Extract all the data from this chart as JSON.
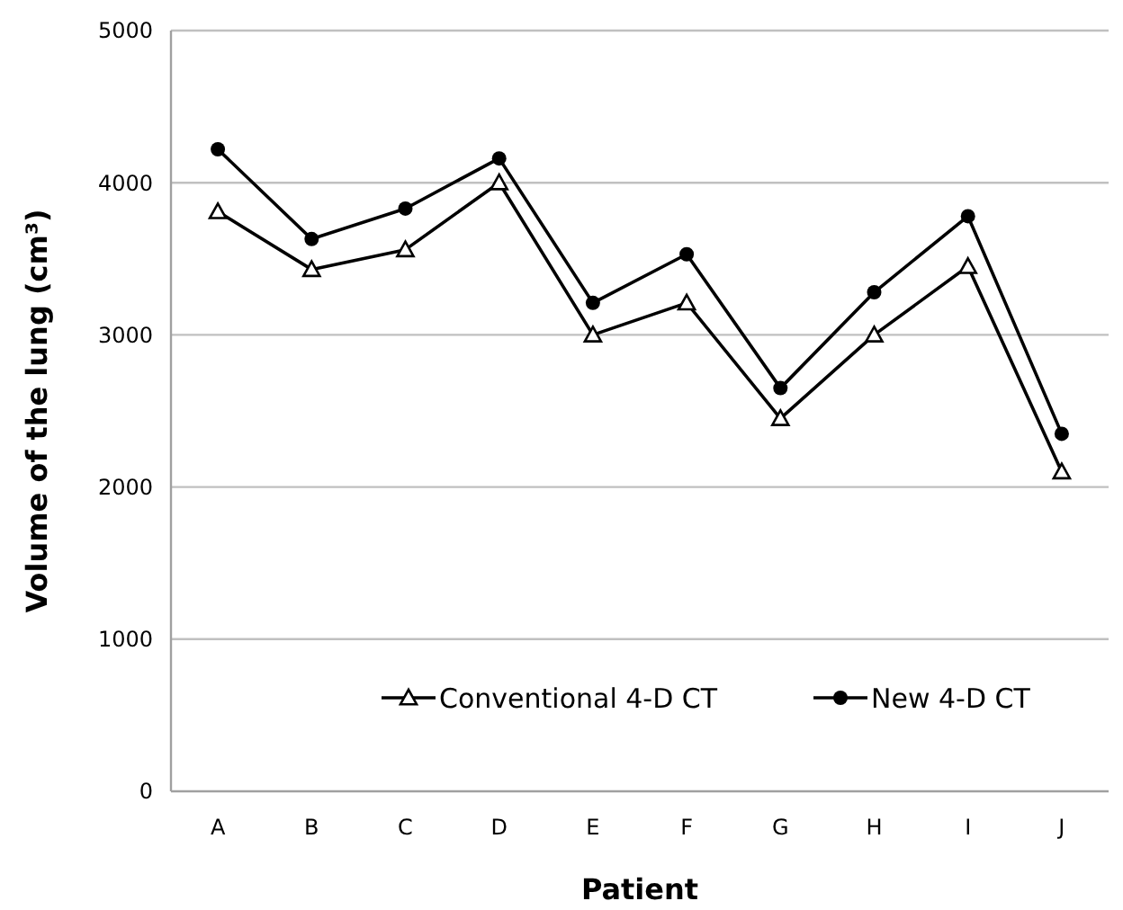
{
  "chart_data": {
    "type": "line",
    "xlabel": "Patient",
    "ylabel": "Volume of the lung (cm³)",
    "categories": [
      "A",
      "B",
      "C",
      "D",
      "E",
      "F",
      "G",
      "H",
      "I",
      "J"
    ],
    "series": [
      {
        "name": "Conventional 4-D CT",
        "color": "#000000",
        "marker": "triangle",
        "values": [
          3810,
          3430,
          3560,
          4000,
          3000,
          3210,
          2450,
          3000,
          3450,
          2100
        ]
      },
      {
        "name": "New 4-D CT",
        "color": "#000000",
        "marker": "circle",
        "values": [
          4220,
          3630,
          3830,
          4160,
          3210,
          3530,
          2650,
          3280,
          3780,
          2350
        ]
      }
    ],
    "ylim": [
      0,
      5000
    ],
    "yticks": [
      0,
      1000,
      2000,
      3000,
      4000,
      5000
    ],
    "grid": "y",
    "legend": "bottom"
  }
}
